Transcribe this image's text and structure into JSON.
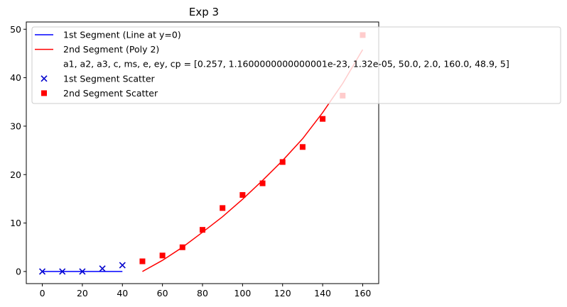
{
  "chart_data": {
    "type": "scatter",
    "title": "Exp 3",
    "xlabel": "",
    "ylabel": "",
    "xlim": [
      -8,
      168
    ],
    "ylim": [
      -2.5,
      51.5
    ],
    "xticks": [
      0,
      20,
      40,
      60,
      80,
      100,
      120,
      140,
      160
    ],
    "yticks": [
      0,
      10,
      20,
      30,
      40,
      50
    ],
    "grid": false,
    "legend_position": "top-left",
    "series": [
      {
        "name": "1st Segment (Line at y=0)",
        "kind": "line",
        "color": "#0000ff",
        "x": [
          0,
          40
        ],
        "y": [
          0,
          0
        ]
      },
      {
        "name": "2nd Segment (Poly 2)",
        "kind": "line",
        "color": "#ff0000",
        "x": [
          50,
          60,
          70,
          80,
          90,
          100,
          110,
          120,
          130,
          140,
          150,
          160
        ],
        "y": [
          0.0,
          2.3,
          5.0,
          8.1,
          11.3,
          14.9,
          18.8,
          22.9,
          27.4,
          32.8,
          38.8,
          45.8
        ]
      },
      {
        "name": "a1, a2, a3, c, ms, e, ey, cp = [0.257, 1.1600000000000001e-23, 1.32e-05, 50.0, 2.0, 160.0, 48.9, 5]",
        "kind": "text-only",
        "color": "#ffffff"
      },
      {
        "name": "1st Segment Scatter",
        "kind": "scatter",
        "marker": "x",
        "color": "#0000cc",
        "x": [
          0,
          10,
          20,
          30,
          40
        ],
        "y": [
          0.0,
          0.0,
          0.0,
          0.6,
          1.3
        ]
      },
      {
        "name": "2nd Segment Scatter",
        "kind": "scatter",
        "marker": "square",
        "color": "#ff0000",
        "x": [
          50,
          60,
          70,
          80,
          90,
          100,
          110,
          120,
          130,
          140,
          150,
          160
        ],
        "y": [
          2.1,
          3.3,
          5.0,
          8.6,
          13.1,
          15.8,
          18.2,
          22.6,
          25.7,
          31.5,
          36.3,
          48.8
        ]
      }
    ]
  }
}
